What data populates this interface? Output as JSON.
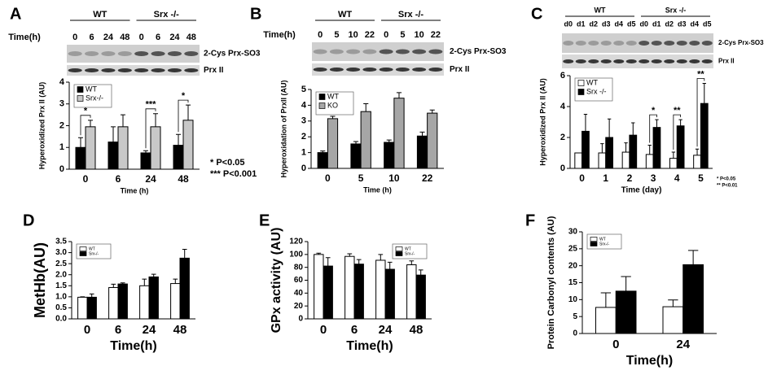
{
  "chart_data": [
    {
      "type": "bar",
      "panel": "A",
      "ylabel": "Hyperoxidized Prx II (AU)",
      "xlabel": "Time (h)",
      "categories": [
        "0",
        "6",
        "24",
        "48"
      ],
      "series": [
        {
          "name": "WT",
          "color": "#000000",
          "values": [
            1.0,
            1.25,
            0.75,
            1.1
          ],
          "errors": [
            0.45,
            0.7,
            0.1,
            0.5
          ]
        },
        {
          "name": "Srx-/-",
          "color": "#c8c8c8",
          "values": [
            1.95,
            1.95,
            1.95,
            2.25
          ],
          "errors": [
            0.3,
            0.55,
            0.6,
            0.7
          ]
        }
      ],
      "ylim": [
        0,
        4
      ],
      "yticks": [
        0,
        1,
        2,
        3,
        4
      ],
      "legend": "upper left",
      "annotations": [
        "*",
        "***",
        "*"
      ],
      "notes": [
        "*    P<0.05",
        "***  P<0.001"
      ],
      "blot": {
        "time_label": "Time(h)",
        "groups": [
          "WT",
          "Srx -/-"
        ],
        "lanes": [
          "0",
          "6",
          "24",
          "48",
          "0",
          "6",
          "24",
          "48"
        ],
        "rows": [
          "2-Cys Prx-SO3",
          "Prx II"
        ]
      }
    },
    {
      "type": "bar",
      "panel": "B",
      "ylabel": "Hyperoxidation of PrxII (AU)",
      "xlabel": "Time (h)",
      "categories": [
        "0",
        "5",
        "10",
        "22"
      ],
      "series": [
        {
          "name": "WT",
          "color": "#000000",
          "values": [
            1.0,
            1.55,
            1.65,
            2.05
          ],
          "errors": [
            0.1,
            0.15,
            0.15,
            0.25
          ]
        },
        {
          "name": "KO",
          "color": "#a6a6a6",
          "values": [
            3.15,
            3.6,
            4.45,
            3.5
          ],
          "errors": [
            0.15,
            0.5,
            0.35,
            0.2
          ]
        }
      ],
      "ylim": [
        0,
        5
      ],
      "yticks": [
        0,
        1,
        2,
        3,
        4,
        5
      ],
      "legend": "upper left",
      "blot": {
        "time_label": "Time(h)",
        "groups": [
          "WT",
          "Srx -/-"
        ],
        "lanes": [
          "0",
          "5",
          "10",
          "22",
          "0",
          "5",
          "10",
          "22"
        ],
        "rows": [
          "2-Cys Prx-SO3",
          "Prx II"
        ]
      }
    },
    {
      "type": "bar",
      "panel": "C",
      "ylabel": "Hyperoxidized Prx II (AU)",
      "xlabel": "Time (day)",
      "categories": [
        "0",
        "1",
        "2",
        "3",
        "4",
        "5"
      ],
      "series": [
        {
          "name": "WT",
          "color": "#ffffff",
          "values": [
            1.0,
            1.0,
            1.05,
            0.9,
            0.65,
            0.85
          ],
          "errors": [
            0,
            0.6,
            0.6,
            0.6,
            0.4,
            0.4
          ]
        },
        {
          "name": "Srx -/-",
          "color": "#000000",
          "values": [
            2.4,
            2.0,
            2.15,
            2.65,
            2.75,
            4.2
          ],
          "errors": [
            1.1,
            1.2,
            0.8,
            0.5,
            0.4,
            1.3
          ]
        }
      ],
      "ylim": [
        0,
        6
      ],
      "yticks": [
        0,
        2,
        4,
        6
      ],
      "legend": "upper left",
      "annotations": [
        "*",
        "**",
        "**"
      ],
      "notes": [
        "* P<0.05",
        "** P<0.01"
      ],
      "blot": {
        "groups": [
          "WT",
          "Srx -/-"
        ],
        "lanes": [
          "d0",
          "d1",
          "d2",
          "d3",
          "d4",
          "d5",
          "d0",
          "d1",
          "d2",
          "d3",
          "d4",
          "d5"
        ],
        "rows": [
          "2-Cys Prx-SO3",
          "Prx II"
        ]
      }
    },
    {
      "type": "bar",
      "panel": "D",
      "ylabel": "MetHb(AU)",
      "xlabel": "Time(h)",
      "categories": [
        "0",
        "6",
        "24",
        "48"
      ],
      "series": [
        {
          "name": "WT",
          "color": "#ffffff",
          "values": [
            0.98,
            1.42,
            1.5,
            1.6
          ],
          "errors": [
            0.02,
            0.15,
            0.3,
            0.2
          ]
        },
        {
          "name": "Srx-/-",
          "color": "#000000",
          "values": [
            0.98,
            1.58,
            1.9,
            2.75
          ],
          "errors": [
            0.15,
            0.05,
            0.12,
            0.4
          ]
        }
      ],
      "ylim": [
        0,
        3.5
      ],
      "yticks": [
        {
          "value": 0,
          "label": "0.0"
        },
        0.5,
        {
          "value": 1,
          "label": "1.0"
        },
        1.5,
        {
          "value": 2,
          "label": "2.0"
        },
        2.5,
        {
          "value": 3,
          "label": "3.0"
        },
        3.5
      ],
      "legend": "upper left"
    },
    {
      "type": "bar",
      "panel": "E",
      "ylabel": "GPx activity (AU)",
      "xlabel": "Time(h)",
      "categories": [
        "0",
        "6",
        "24",
        "48"
      ],
      "series": [
        {
          "name": "WT",
          "color": "#ffffff",
          "values": [
            100,
            97,
            91,
            84
          ],
          "errors": [
            2,
            4,
            9,
            6
          ]
        },
        {
          "name": "Srx-/-",
          "color": "#000000",
          "values": [
            82,
            85,
            77,
            68
          ],
          "errors": [
            13,
            7,
            11,
            8
          ]
        }
      ],
      "ylim": [
        0,
        120
      ],
      "yticks": [
        0,
        20,
        40,
        60,
        80,
        100,
        120
      ],
      "legend": "upper right"
    },
    {
      "type": "bar",
      "panel": "F",
      "ylabel": "Protein Carbonyl contents (AU)",
      "xlabel": "Time(h)",
      "categories": [
        "0",
        "24"
      ],
      "series": [
        {
          "name": "WT",
          "color": "#ffffff",
          "values": [
            7.7,
            7.9
          ],
          "errors": [
            4.3,
            2
          ]
        },
        {
          "name": "Srx-/-",
          "color": "#000000",
          "values": [
            12.5,
            20.3
          ],
          "errors": [
            4.3,
            4.2
          ]
        }
      ],
      "ylim": [
        0,
        30
      ],
      "yticks": [
        0,
        5,
        10,
        15,
        20,
        25,
        30
      ],
      "legend": "upper left"
    }
  ]
}
